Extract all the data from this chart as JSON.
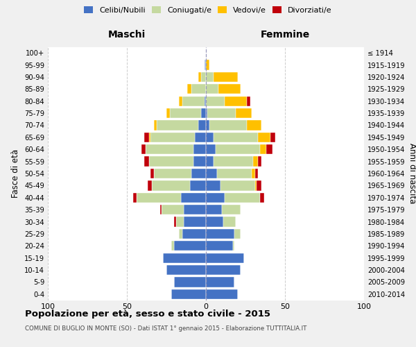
{
  "age_groups": [
    "0-4",
    "5-9",
    "10-14",
    "15-19",
    "20-24",
    "25-29",
    "30-34",
    "35-39",
    "40-44",
    "45-49",
    "50-54",
    "55-59",
    "60-64",
    "65-69",
    "70-74",
    "75-79",
    "80-84",
    "85-89",
    "90-94",
    "95-99",
    "100+"
  ],
  "birth_years": [
    "2010-2014",
    "2005-2009",
    "2000-2004",
    "1995-1999",
    "1990-1994",
    "1985-1989",
    "1980-1984",
    "1975-1979",
    "1970-1974",
    "1965-1969",
    "1960-1964",
    "1955-1959",
    "1950-1954",
    "1945-1949",
    "1940-1944",
    "1935-1939",
    "1930-1934",
    "1925-1929",
    "1920-1924",
    "1915-1919",
    "≤ 1914"
  ],
  "males": {
    "celibi": [
      22,
      20,
      25,
      27,
      20,
      15,
      14,
      14,
      16,
      10,
      9,
      8,
      8,
      7,
      5,
      3,
      1,
      0,
      0,
      1,
      0
    ],
    "coniugati": [
      0,
      0,
      0,
      0,
      2,
      2,
      5,
      14,
      28,
      24,
      24,
      28,
      30,
      28,
      26,
      20,
      14,
      9,
      3,
      0,
      0
    ],
    "vedovi": [
      0,
      0,
      0,
      0,
      0,
      0,
      0,
      0,
      0,
      0,
      0,
      0,
      0,
      1,
      2,
      2,
      2,
      3,
      2,
      0,
      0
    ],
    "divorziati": [
      0,
      0,
      0,
      0,
      0,
      0,
      1,
      1,
      2,
      3,
      2,
      3,
      3,
      3,
      0,
      0,
      0,
      0,
      0,
      0,
      0
    ]
  },
  "females": {
    "nubili": [
      20,
      18,
      22,
      24,
      17,
      18,
      11,
      10,
      12,
      9,
      7,
      5,
      6,
      5,
      2,
      1,
      0,
      0,
      0,
      0,
      0
    ],
    "coniugate": [
      0,
      0,
      0,
      0,
      1,
      4,
      8,
      12,
      22,
      22,
      22,
      25,
      28,
      28,
      24,
      18,
      12,
      8,
      5,
      0,
      0
    ],
    "vedove": [
      0,
      0,
      0,
      0,
      0,
      0,
      0,
      0,
      0,
      1,
      2,
      3,
      4,
      8,
      9,
      10,
      14,
      14,
      15,
      2,
      0
    ],
    "divorziate": [
      0,
      0,
      0,
      0,
      0,
      0,
      0,
      0,
      3,
      3,
      2,
      2,
      4,
      3,
      0,
      0,
      2,
      0,
      0,
      0,
      0
    ]
  },
  "colors": {
    "celibi_nubili": "#4472c4",
    "coniugati": "#c5d9a0",
    "vedovi": "#ffc000",
    "divorziati": "#c0000b"
  },
  "xlim": 100,
  "title": "Popolazione per età, sesso e stato civile - 2015",
  "subtitle": "COMUNE DI BUGLIO IN MONTE (SO) - Dati ISTAT 1° gennaio 2015 - Elaborazione TUTTITALIA.IT",
  "ylabel_left": "Fasce di età",
  "ylabel_right": "Anni di nascita",
  "xlabel_left": "Maschi",
  "xlabel_right": "Femmine",
  "bg_color": "#f0f0f0",
  "plot_bg_color": "#ffffff"
}
